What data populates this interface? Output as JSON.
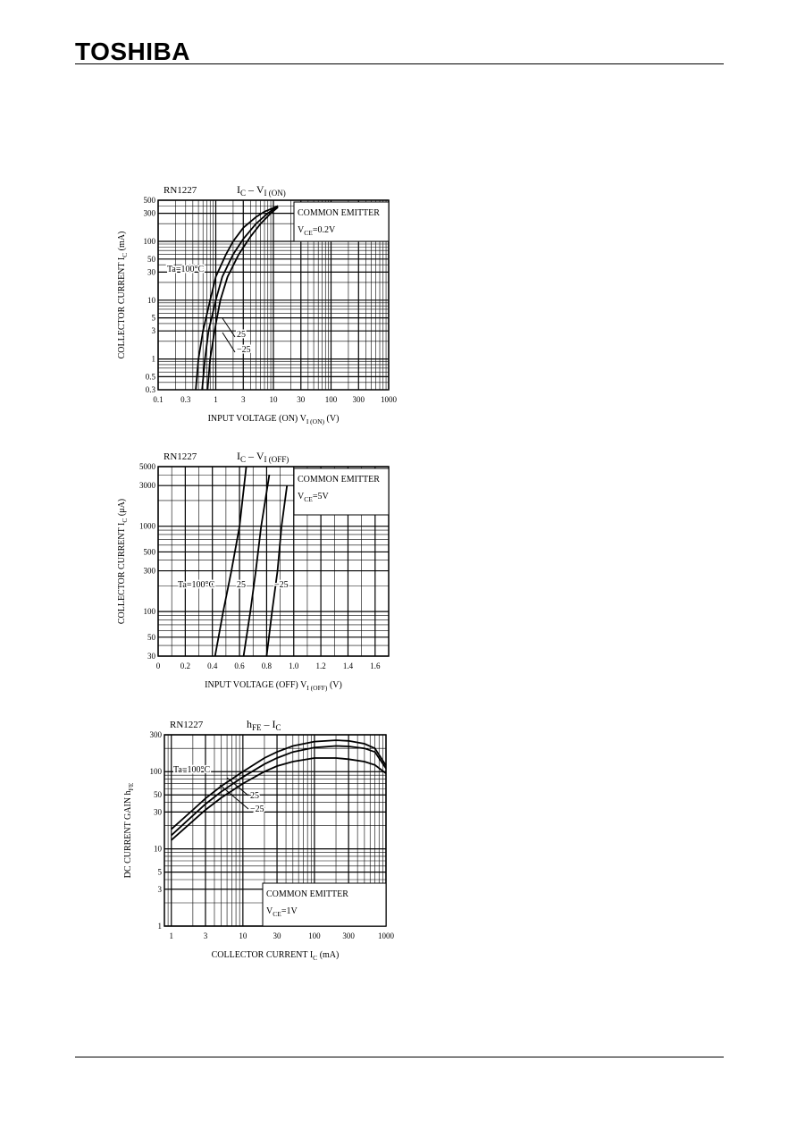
{
  "header": {
    "brand": "TOSHIBA"
  },
  "chart_data": [
    {
      "type": "line",
      "part": "RN1227",
      "title_main": "I",
      "title_sub1": "C",
      "title_dash": "–",
      "title_var": "V",
      "title_sub2": "I (ON)",
      "xlabel": "INPUT VOLTAGE (ON)   V",
      "xlabel_sub": "I (ON)",
      "xlabel_unit": "(V)",
      "ylabel": "COLLECTOR CURRENT   I",
      "ylabel_sub": "C",
      "ylabel_unit": "(mA)",
      "xscale": "log",
      "yscale": "log",
      "xlim": [
        0.1,
        1000
      ],
      "ylim": [
        0.3,
        500
      ],
      "xticks": [
        0.1,
        0.3,
        1,
        3,
        10,
        30,
        100,
        300,
        1000
      ],
      "xtick_labels": [
        "0.1",
        "0.3",
        "1",
        "3",
        "10",
        "30",
        "100",
        "300",
        "1000"
      ],
      "yticks": [
        0.3,
        0.5,
        1,
        3,
        5,
        10,
        30,
        50,
        100,
        300,
        500
      ],
      "ytick_labels": [
        "0.3",
        "0.5",
        "1",
        "3",
        "5",
        "10",
        "30",
        "50",
        "100",
        "300",
        "500"
      ],
      "note_line1": "COMMON EMITTER",
      "note_line2_var": "V",
      "note_line2_sub": "CE",
      "note_line2_val": "=0.2V",
      "series": [
        {
          "name": "Ta=100°C",
          "x": [
            0.45,
            0.5,
            0.6,
            0.8,
            1,
            1.5,
            2,
            3,
            5,
            7,
            12
          ],
          "y": [
            0.3,
            1,
            3,
            10,
            25,
            60,
            100,
            170,
            260,
            320,
            400
          ]
        },
        {
          "name": "25",
          "x": [
            0.58,
            0.65,
            0.75,
            1,
            1.3,
            2,
            3,
            5,
            8,
            12
          ],
          "y": [
            0.3,
            1,
            3,
            10,
            25,
            60,
            110,
            200,
            300,
            400
          ]
        },
        {
          "name": "−25",
          "x": [
            0.72,
            0.8,
            0.95,
            1.2,
            1.6,
            2.5,
            4,
            6,
            9,
            12
          ],
          "y": [
            0.3,
            1,
            3,
            10,
            25,
            60,
            120,
            200,
            300,
            380
          ]
        }
      ],
      "series_labels": [
        "Ta=100°C",
        "25",
        "−25"
      ]
    },
    {
      "type": "line",
      "part": "RN1227",
      "title_main": "I",
      "title_sub1": "C",
      "title_dash": "–",
      "title_var": "V",
      "title_sub2": "I (OFF)",
      "xlabel": "INPUT VOLTAGE (OFF)   V",
      "xlabel_sub": "I (OFF)",
      "xlabel_unit": "(V)",
      "ylabel": "COLLECTOR CURRENT   I",
      "ylabel_sub": "C",
      "ylabel_unit": "(μA)",
      "xscale": "linear",
      "yscale": "log",
      "xlim": [
        0,
        1.7
      ],
      "ylim": [
        30,
        5000
      ],
      "xticks": [
        0,
        0.2,
        0.4,
        0.6,
        0.8,
        1.0,
        1.2,
        1.4,
        1.6
      ],
      "xtick_labels": [
        "0",
        "0.2",
        "0.4",
        "0.6",
        "0.8",
        "1.0",
        "1.2",
        "1.4",
        "1.6"
      ],
      "yticks": [
        30,
        50,
        100,
        300,
        500,
        1000,
        3000,
        5000
      ],
      "ytick_labels": [
        "30",
        "50",
        "100",
        "300",
        "500",
        "1000",
        "3000",
        "5000"
      ],
      "note_line1": "COMMON EMITTER",
      "note_line2_var": "V",
      "note_line2_sub": "CE",
      "note_line2_val": "=5V",
      "series": [
        {
          "name": "Ta=100°C",
          "x": [
            0.42,
            0.48,
            0.54,
            0.6,
            0.65
          ],
          "y": [
            30,
            100,
            300,
            1000,
            5000
          ]
        },
        {
          "name": "25",
          "x": [
            0.63,
            0.68,
            0.72,
            0.76,
            0.82
          ],
          "y": [
            30,
            100,
            300,
            1000,
            4000
          ]
        },
        {
          "name": "−25",
          "x": [
            0.8,
            0.84,
            0.88,
            0.91,
            0.95
          ],
          "y": [
            30,
            100,
            300,
            1000,
            3000
          ]
        }
      ],
      "series_labels": [
        "Ta=100°C",
        "25",
        "−25"
      ]
    },
    {
      "type": "line",
      "part": "RN1227",
      "title_main": "h",
      "title_sub1": "FE",
      "title_dash": "–",
      "title_var": "I",
      "title_sub2": "C",
      "xlabel": "COLLECTOR CURRENT   I",
      "xlabel_sub": "C",
      "xlabel_unit": "(mA)",
      "ylabel": "DC CURRENT GAIN   h",
      "ylabel_sub": "FE",
      "ylabel_unit": "",
      "xscale": "log",
      "yscale": "log",
      "xlim": [
        0.8,
        1000
      ],
      "ylim": [
        1,
        300
      ],
      "xticks": [
        1,
        3,
        10,
        30,
        100,
        300,
        1000
      ],
      "xtick_labels": [
        "1",
        "3",
        "10",
        "30",
        "100",
        "300",
        "1000"
      ],
      "yticks": [
        1,
        3,
        5,
        10,
        30,
        50,
        100,
        300
      ],
      "ytick_labels": [
        "1",
        "3",
        "5",
        "10",
        "30",
        "50",
        "100",
        "300"
      ],
      "note_line1": "COMMON EMITTER",
      "note_line2_var": "V",
      "note_line2_sub": "CE",
      "note_line2_val": "=1V",
      "series": [
        {
          "name": "Ta=100°C",
          "x": [
            1,
            2,
            3,
            5,
            10,
            20,
            30,
            50,
            100,
            200,
            300,
            500,
            700,
            1000
          ],
          "y": [
            18,
            32,
            45,
            65,
            100,
            150,
            180,
            215,
            245,
            255,
            250,
            230,
            200,
            120
          ]
        },
        {
          "name": "25",
          "x": [
            1,
            2,
            3,
            5,
            10,
            20,
            30,
            50,
            100,
            200,
            300,
            500,
            700,
            1000
          ],
          "y": [
            15,
            27,
            38,
            55,
            85,
            125,
            150,
            180,
            205,
            215,
            212,
            200,
            180,
            110
          ]
        },
        {
          "name": "−25",
          "x": [
            1,
            2,
            3,
            5,
            10,
            20,
            30,
            50,
            100,
            200,
            300,
            500,
            700,
            1000
          ],
          "y": [
            13,
            23,
            32,
            46,
            70,
            100,
            118,
            135,
            150,
            150,
            145,
            135,
            122,
            95
          ]
        }
      ],
      "series_labels": [
        "Ta=100°C",
        "25",
        "−25"
      ]
    }
  ]
}
